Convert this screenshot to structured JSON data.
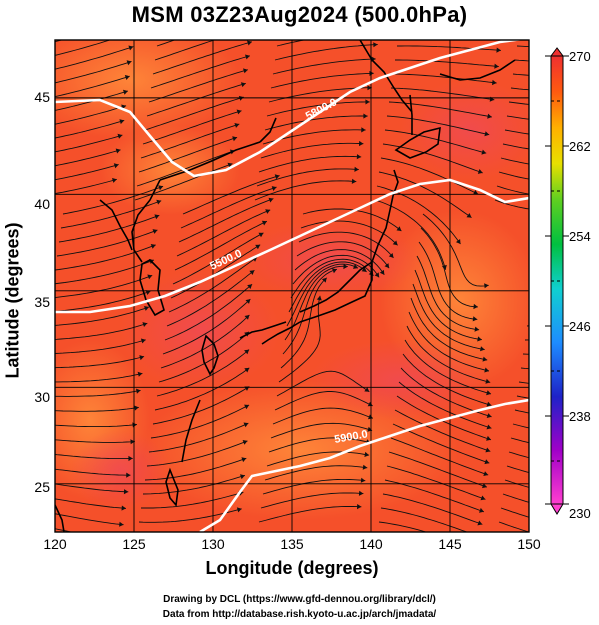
{
  "title": "MSM 03Z23Aug2024 (500.0hPa)",
  "x_axis": {
    "label": "Longitude (degrees)",
    "ticks": [
      "120",
      "125",
      "130",
      "135",
      "140",
      "145",
      "150"
    ]
  },
  "y_axis": {
    "label": "Latitude  (degrees)",
    "ticks": [
      "25",
      "30",
      "35",
      "40",
      "45"
    ]
  },
  "colorbar": {
    "ticks": [
      "270",
      "262",
      "254",
      "246",
      "238",
      "230"
    ],
    "min": 230,
    "max": 270
  },
  "contours": [
    {
      "label": "5900.0"
    },
    {
      "label": "5800.0"
    },
    {
      "label": "5500.0"
    }
  ],
  "credits": {
    "line1": "Drawing by DCL (https://www.gfd-dennou.org/library/dcl/)",
    "line2": "Data from http://database.rish.kyoto-u.ac.jp/arch/jmadata/"
  }
}
